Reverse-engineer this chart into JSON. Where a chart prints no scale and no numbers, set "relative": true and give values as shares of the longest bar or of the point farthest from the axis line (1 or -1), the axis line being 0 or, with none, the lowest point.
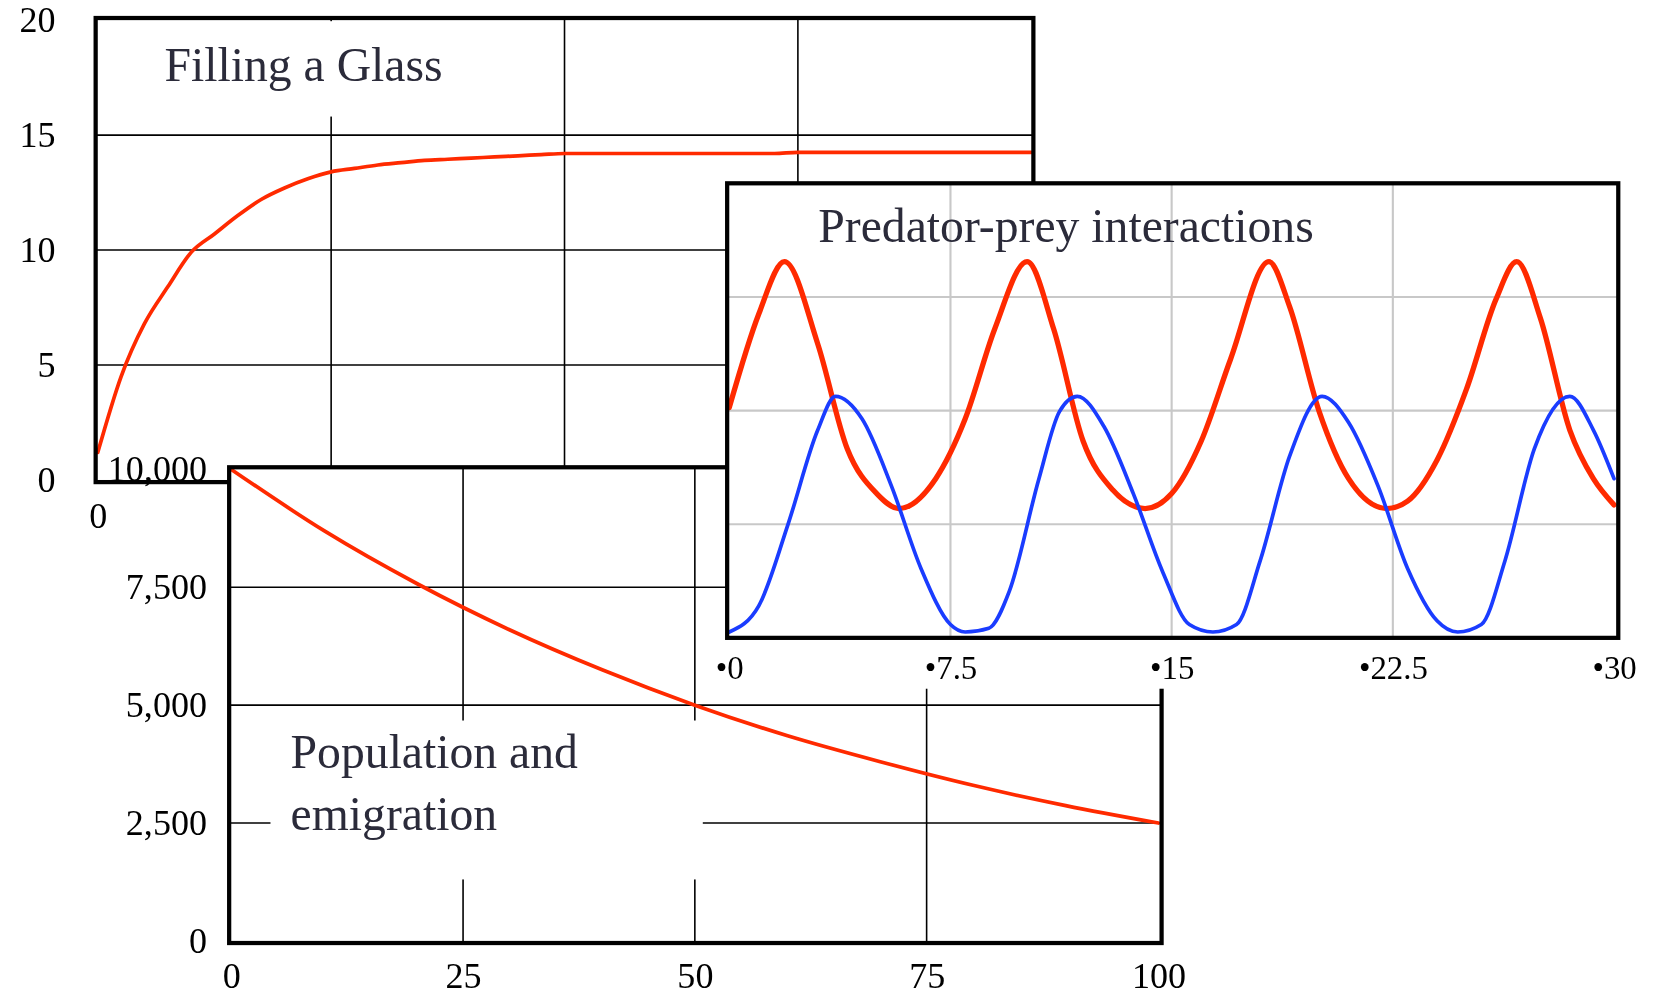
{
  "chart_data": [
    {
      "type": "line",
      "title": "Filling a Glass",
      "categories": [
        "0",
        null,
        null,
        null,
        null,
        null,
        null,
        null,
        null,
        null,
        null,
        null,
        null,
        null,
        null,
        null,
        null,
        null,
        null,
        null,
        null,
        null,
        null,
        null,
        null,
        null,
        null,
        null,
        null,
        null,
        null,
        null,
        null,
        null,
        null,
        null,
        null,
        null,
        null,
        null,
        null
      ],
      "series": [
        {
          "color": "#ff2a00",
          "values": [
            1.2,
            4.5,
            6.8,
            8.4,
            9.9,
            10.7,
            11.5,
            12.2,
            12.7,
            13.1,
            13.4,
            13.55,
            13.7,
            13.8,
            13.9,
            13.95,
            14.0,
            14.05,
            14.1,
            14.15,
            14.2,
            14.2,
            14.2,
            14.2,
            14.2,
            14.2,
            14.2,
            14.2,
            14.2,
            14.2,
            14.25,
            14.25,
            14.25,
            14.25,
            14.25,
            14.25,
            14.25,
            14.25,
            14.25,
            14.25,
            14.25
          ]
        }
      ],
      "ylim": [
        0,
        20
      ],
      "yticks": [
        0,
        5,
        10,
        15,
        20
      ],
      "grid": true,
      "marker": "none",
      "line_style": "solid"
    },
    {
      "type": "line",
      "title": "Population and emigration",
      "x": [
        0,
        10,
        20,
        30,
        40,
        50,
        60,
        70,
        80,
        90,
        100
      ],
      "series": [
        {
          "color": "#ff2a00",
          "values": [
            10000,
            8700,
            7580,
            6600,
            5750,
            5000,
            4350,
            3800,
            3300,
            2870,
            2500
          ]
        }
      ],
      "xlim": [
        0,
        100
      ],
      "xticks": [
        0,
        25,
        50,
        75,
        100
      ],
      "ylim": [
        0,
        10000
      ],
      "yticks": [
        0,
        {
          "value": 2500,
          "label": "2,500"
        },
        {
          "value": 5000,
          "label": "5,000"
        },
        {
          "value": 7500,
          "label": "7,500"
        },
        {
          "value": 10000,
          "label": "10,000"
        }
      ],
      "grid": true,
      "marker": "none",
      "line_style": "solid"
    },
    {
      "type": "line",
      "title": "Predator-prey interactions",
      "relative": true,
      "series": [
        {
          "color": "#ff2a00",
          "x": [
            0,
            1,
            1.87,
            3,
            4,
            5,
            5.75,
            7,
            8,
            9,
            10.1,
            11,
            12,
            13,
            14.1,
            15,
            16,
            17,
            18.3,
            19,
            20,
            21,
            22.3,
            23,
            24,
            25,
            26,
            26.7,
            27.5,
            28.5,
            29.3,
            30
          ],
          "values": [
            0.61,
            0.86,
            1,
            0.78,
            0.5,
            0.38,
            0.34,
            0.42,
            0.58,
            0.82,
            1,
            0.82,
            0.52,
            0.39,
            0.34,
            0.38,
            0.52,
            0.74,
            1,
            0.88,
            0.6,
            0.42,
            0.34,
            0.36,
            0.47,
            0.66,
            0.9,
            1,
            0.85,
            0.55,
            0.42,
            0.35
          ]
        },
        {
          "color": "#1a3cff",
          "x": [
            0,
            1,
            2,
            3,
            3.6,
            4.5,
            5.5,
            6.5,
            7.5,
            8.0,
            8.8,
            9.5,
            10.5,
            11.2,
            11.8,
            12.7,
            13.7,
            14.7,
            15.6,
            16.4,
            17.2,
            18,
            19,
            20.1,
            21,
            22,
            23,
            24,
            24.7,
            25.5,
            26.3,
            27.3,
            28.5,
            29.3,
            30
          ],
          "values": [
            0.01,
            0.08,
            0.3,
            0.55,
            0.64,
            0.58,
            0.4,
            0.18,
            0.03,
            0.01,
            0.02,
            0.12,
            0.42,
            0.6,
            0.64,
            0.56,
            0.38,
            0.17,
            0.03,
            0.01,
            0.03,
            0.2,
            0.48,
            0.64,
            0.57,
            0.4,
            0.18,
            0.04,
            0.01,
            0.03,
            0.2,
            0.5,
            0.64,
            0.55,
            0.42
          ]
        }
      ],
      "xlim": [
        0,
        30
      ],
      "xticks": [
        {
          "value": 0,
          "label": "•0"
        },
        {
          "value": 7.5,
          "label": "•7.5"
        },
        {
          "value": 15,
          "label": "•15"
        },
        {
          "value": 22.5,
          "label": "•22.5"
        },
        {
          "value": 30,
          "label": "•30"
        }
      ],
      "grid": true,
      "marker": "none",
      "line_style": "solid"
    }
  ]
}
